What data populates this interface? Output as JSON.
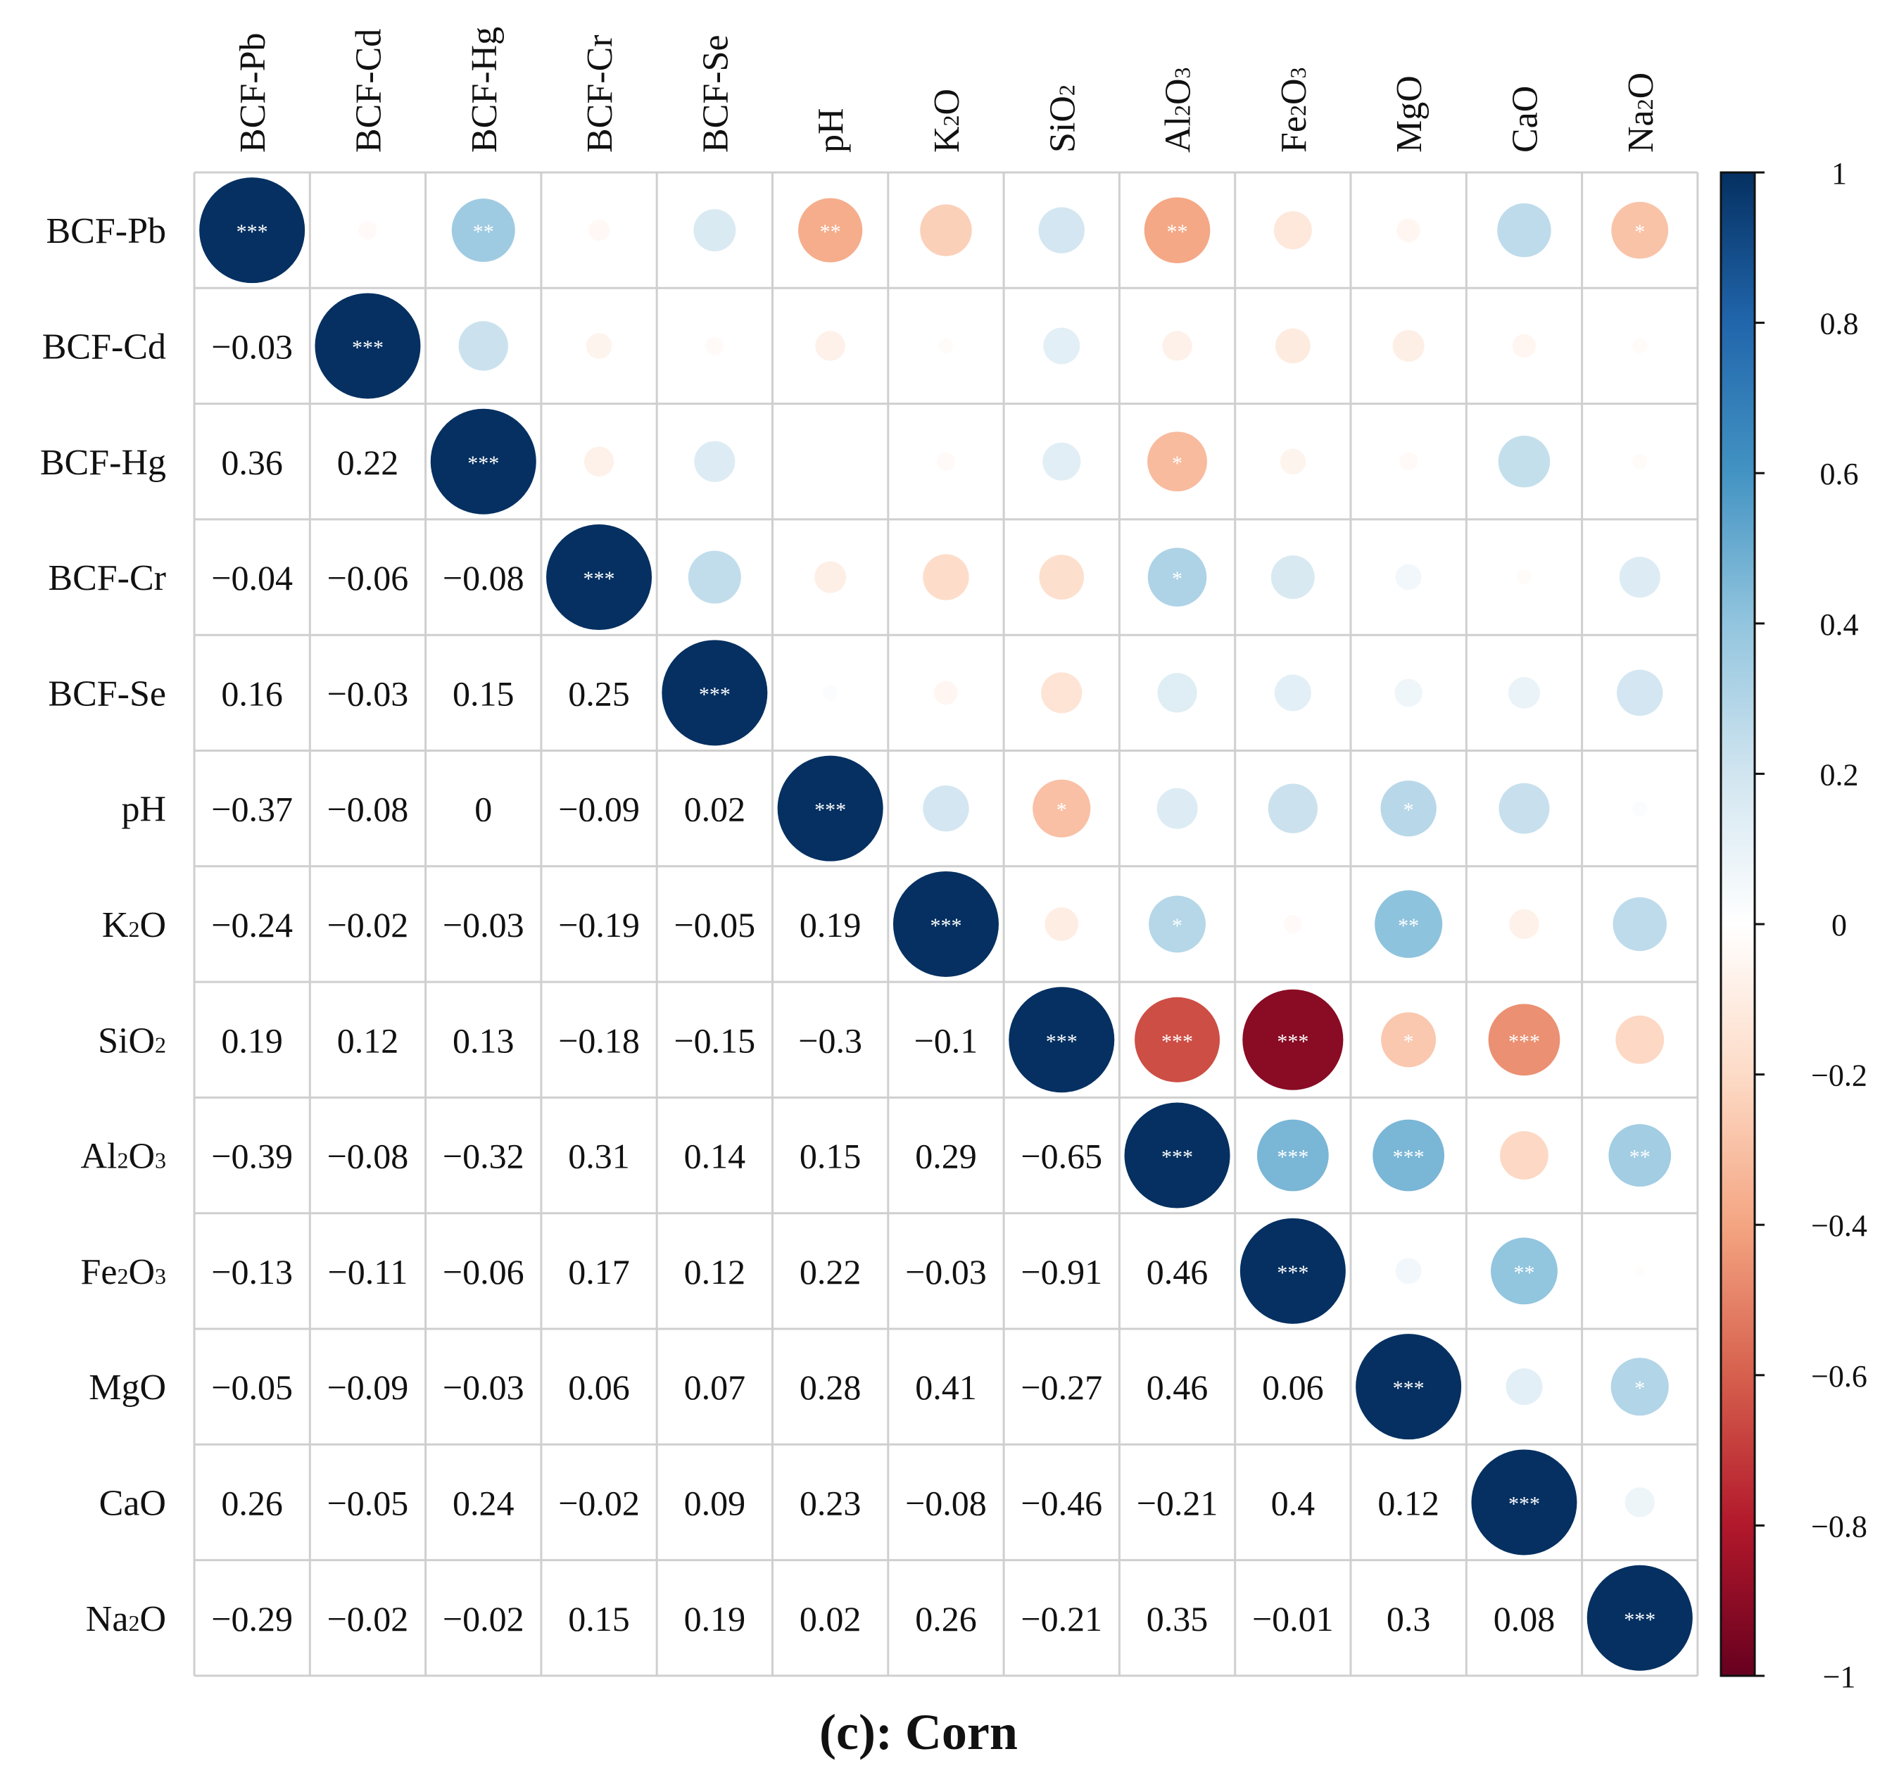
{
  "chart_data": {
    "type": "heatmap",
    "subtype": "correlation-matrix",
    "title": "(c): Corn",
    "variables": [
      {
        "label": "BCF-Pb",
        "sub": null
      },
      {
        "label": "BCF-Cd",
        "sub": null
      },
      {
        "label": "BCF-Hg",
        "sub": null
      },
      {
        "label": "BCF-Cr",
        "sub": null
      },
      {
        "label": "BCF-Se",
        "sub": null
      },
      {
        "label": "pH",
        "sub": null
      },
      {
        "label": "K2O",
        "sub": [
          [
            "K",
            ""
          ],
          [
            "2",
            "sub"
          ],
          [
            "O",
            ""
          ]
        ]
      },
      {
        "label": "SiO2",
        "sub": [
          [
            "SiO",
            ""
          ],
          [
            "2",
            "sub"
          ]
        ]
      },
      {
        "label": "Al2O3",
        "sub": [
          [
            "Al",
            ""
          ],
          [
            "2",
            "sub"
          ],
          [
            "O",
            ""
          ],
          [
            "3",
            "sub"
          ]
        ]
      },
      {
        "label": "Fe2O3",
        "sub": [
          [
            "Fe",
            ""
          ],
          [
            "2",
            "sub"
          ],
          [
            "O",
            ""
          ],
          [
            "3",
            "sub"
          ]
        ]
      },
      {
        "label": "MgO",
        "sub": null
      },
      {
        "label": "CaO",
        "sub": null
      },
      {
        "label": "Na2O",
        "sub": [
          [
            "Na",
            ""
          ],
          [
            "2",
            "sub"
          ],
          [
            "O",
            ""
          ]
        ]
      }
    ],
    "lower_labels": [
      [],
      [
        "−0.03"
      ],
      [
        "0.36",
        "0.22"
      ],
      [
        "−0.04",
        "−0.06",
        "−0.08"
      ],
      [
        "0.16",
        "−0.03",
        "0.15",
        "0.25"
      ],
      [
        "−0.37",
        "−0.08",
        "0",
        "−0.09",
        "0.02"
      ],
      [
        "−0.24",
        "−0.02",
        "−0.03",
        "−0.19",
        "−0.05",
        "0.19"
      ],
      [
        "0.19",
        "0.12",
        "0.13",
        "−0.18",
        "−0.15",
        "−0.3",
        "−0.1"
      ],
      [
        "−0.39",
        "−0.08",
        "−0.32",
        "0.31",
        "0.14",
        "0.15",
        "0.29",
        "−0.65"
      ],
      [
        "−0.13",
        "−0.11",
        "−0.06",
        "0.17",
        "0.12",
        "0.22",
        "−0.03",
        "−0.91",
        "0.46"
      ],
      [
        "−0.05",
        "−0.09",
        "−0.03",
        "0.06",
        "0.07",
        "0.28",
        "0.41",
        "−0.27",
        "0.46",
        "0.06"
      ],
      [
        "0.26",
        "−0.05",
        "0.24",
        "−0.02",
        "0.09",
        "0.23",
        "−0.08",
        "−0.46",
        "−0.21",
        "0.4",
        "0.12"
      ],
      [
        "−0.29",
        "−0.02",
        "−0.02",
        "0.15",
        "0.19",
        "0.02",
        "0.26",
        "−0.21",
        "0.35",
        "−0.01",
        "0.3",
        "0.08"
      ]
    ],
    "lower_values": [
      [],
      [
        -0.03
      ],
      [
        0.36,
        0.22
      ],
      [
        -0.04,
        -0.06,
        -0.08
      ],
      [
        0.16,
        -0.03,
        0.15,
        0.25
      ],
      [
        -0.37,
        -0.08,
        0,
        -0.09,
        0.02
      ],
      [
        -0.24,
        -0.02,
        -0.03,
        -0.19,
        -0.05,
        0.19
      ],
      [
        0.19,
        0.12,
        0.13,
        -0.18,
        -0.15,
        -0.3,
        -0.1
      ],
      [
        -0.39,
        -0.08,
        -0.32,
        0.31,
        0.14,
        0.15,
        0.29,
        -0.65
      ],
      [
        -0.13,
        -0.11,
        -0.06,
        0.17,
        0.12,
        0.22,
        -0.03,
        -0.91,
        0.46
      ],
      [
        -0.05,
        -0.09,
        -0.03,
        0.06,
        0.07,
        0.28,
        0.41,
        -0.27,
        0.46,
        0.06
      ],
      [
        0.26,
        -0.05,
        0.24,
        -0.02,
        0.09,
        0.23,
        -0.08,
        -0.46,
        -0.21,
        0.4,
        0.12
      ],
      [
        -0.29,
        -0.02,
        -0.02,
        0.15,
        0.19,
        0.02,
        0.26,
        -0.21,
        0.35,
        -0.01,
        0.3,
        0.08
      ]
    ],
    "significance": [
      [
        "***",
        "",
        "**",
        "",
        "",
        "**",
        "",
        "",
        "**",
        "",
        "",
        "",
        "*"
      ],
      [
        "",
        "***",
        "",
        "",
        "",
        "",
        "",
        "",
        "",
        "",
        "",
        "",
        ""
      ],
      [
        "**",
        "",
        "***",
        "",
        "",
        "",
        "",
        "",
        "*",
        "",
        "",
        "",
        ""
      ],
      [
        "",
        "",
        "",
        "***",
        "",
        "",
        "",
        "",
        "*",
        "",
        "",
        "",
        ""
      ],
      [
        "",
        "",
        "",
        "",
        "***",
        "",
        "",
        "",
        "",
        "",
        "",
        "",
        ""
      ],
      [
        "**",
        "",
        "",
        "",
        "",
        "***",
        "",
        "*",
        "",
        "",
        "*",
        "",
        ""
      ],
      [
        "",
        "",
        "",
        "",
        "",
        "",
        "***",
        "",
        "*",
        "",
        "**",
        "",
        ""
      ],
      [
        "",
        "",
        "",
        "",
        "",
        "*",
        "",
        "***",
        "***",
        "***",
        "*",
        "***",
        ""
      ],
      [
        "**",
        "",
        "*",
        "*",
        "",
        "",
        "*",
        "***",
        "***",
        "***",
        "***",
        "",
        "**"
      ],
      [
        "",
        "",
        "",
        "",
        "",
        "",
        "",
        "***",
        "***",
        "***",
        "",
        "**",
        ""
      ],
      [
        "",
        "",
        "",
        "",
        "",
        "*",
        "**",
        "*",
        "***",
        "",
        "***",
        "",
        "*"
      ],
      [
        "",
        "",
        "",
        "",
        "",
        "",
        "",
        "***",
        "",
        "**",
        "",
        "***",
        ""
      ],
      [
        "*",
        "",
        "",
        "",
        "",
        "",
        "",
        "",
        "**",
        "",
        "*",
        "",
        "***"
      ]
    ],
    "colorbar": {
      "range": [
        -1,
        1
      ],
      "ticks": [
        1,
        0.8,
        0.6,
        0.4,
        0.2,
        0,
        -0.2,
        -0.4,
        -0.6,
        -0.8,
        -1
      ],
      "tick_labels": [
        "1",
        "0.8",
        "0.6",
        "0.4",
        "0.2",
        "0",
        "−0.2",
        "−0.4",
        "−0.6",
        "−0.8",
        "−1"
      ],
      "colors_from_negative_to_positive": [
        "#67001f",
        "#b2182b",
        "#d6604d",
        "#f4a582",
        "#fddbc7",
        "#ffffff",
        "#d1e5f0",
        "#92c5de",
        "#4393c3",
        "#2166ac",
        "#053061"
      ]
    },
    "lower_triangle_style": "numbers",
    "upper_triangle_style": "circles-with-significance",
    "grid": true
  }
}
